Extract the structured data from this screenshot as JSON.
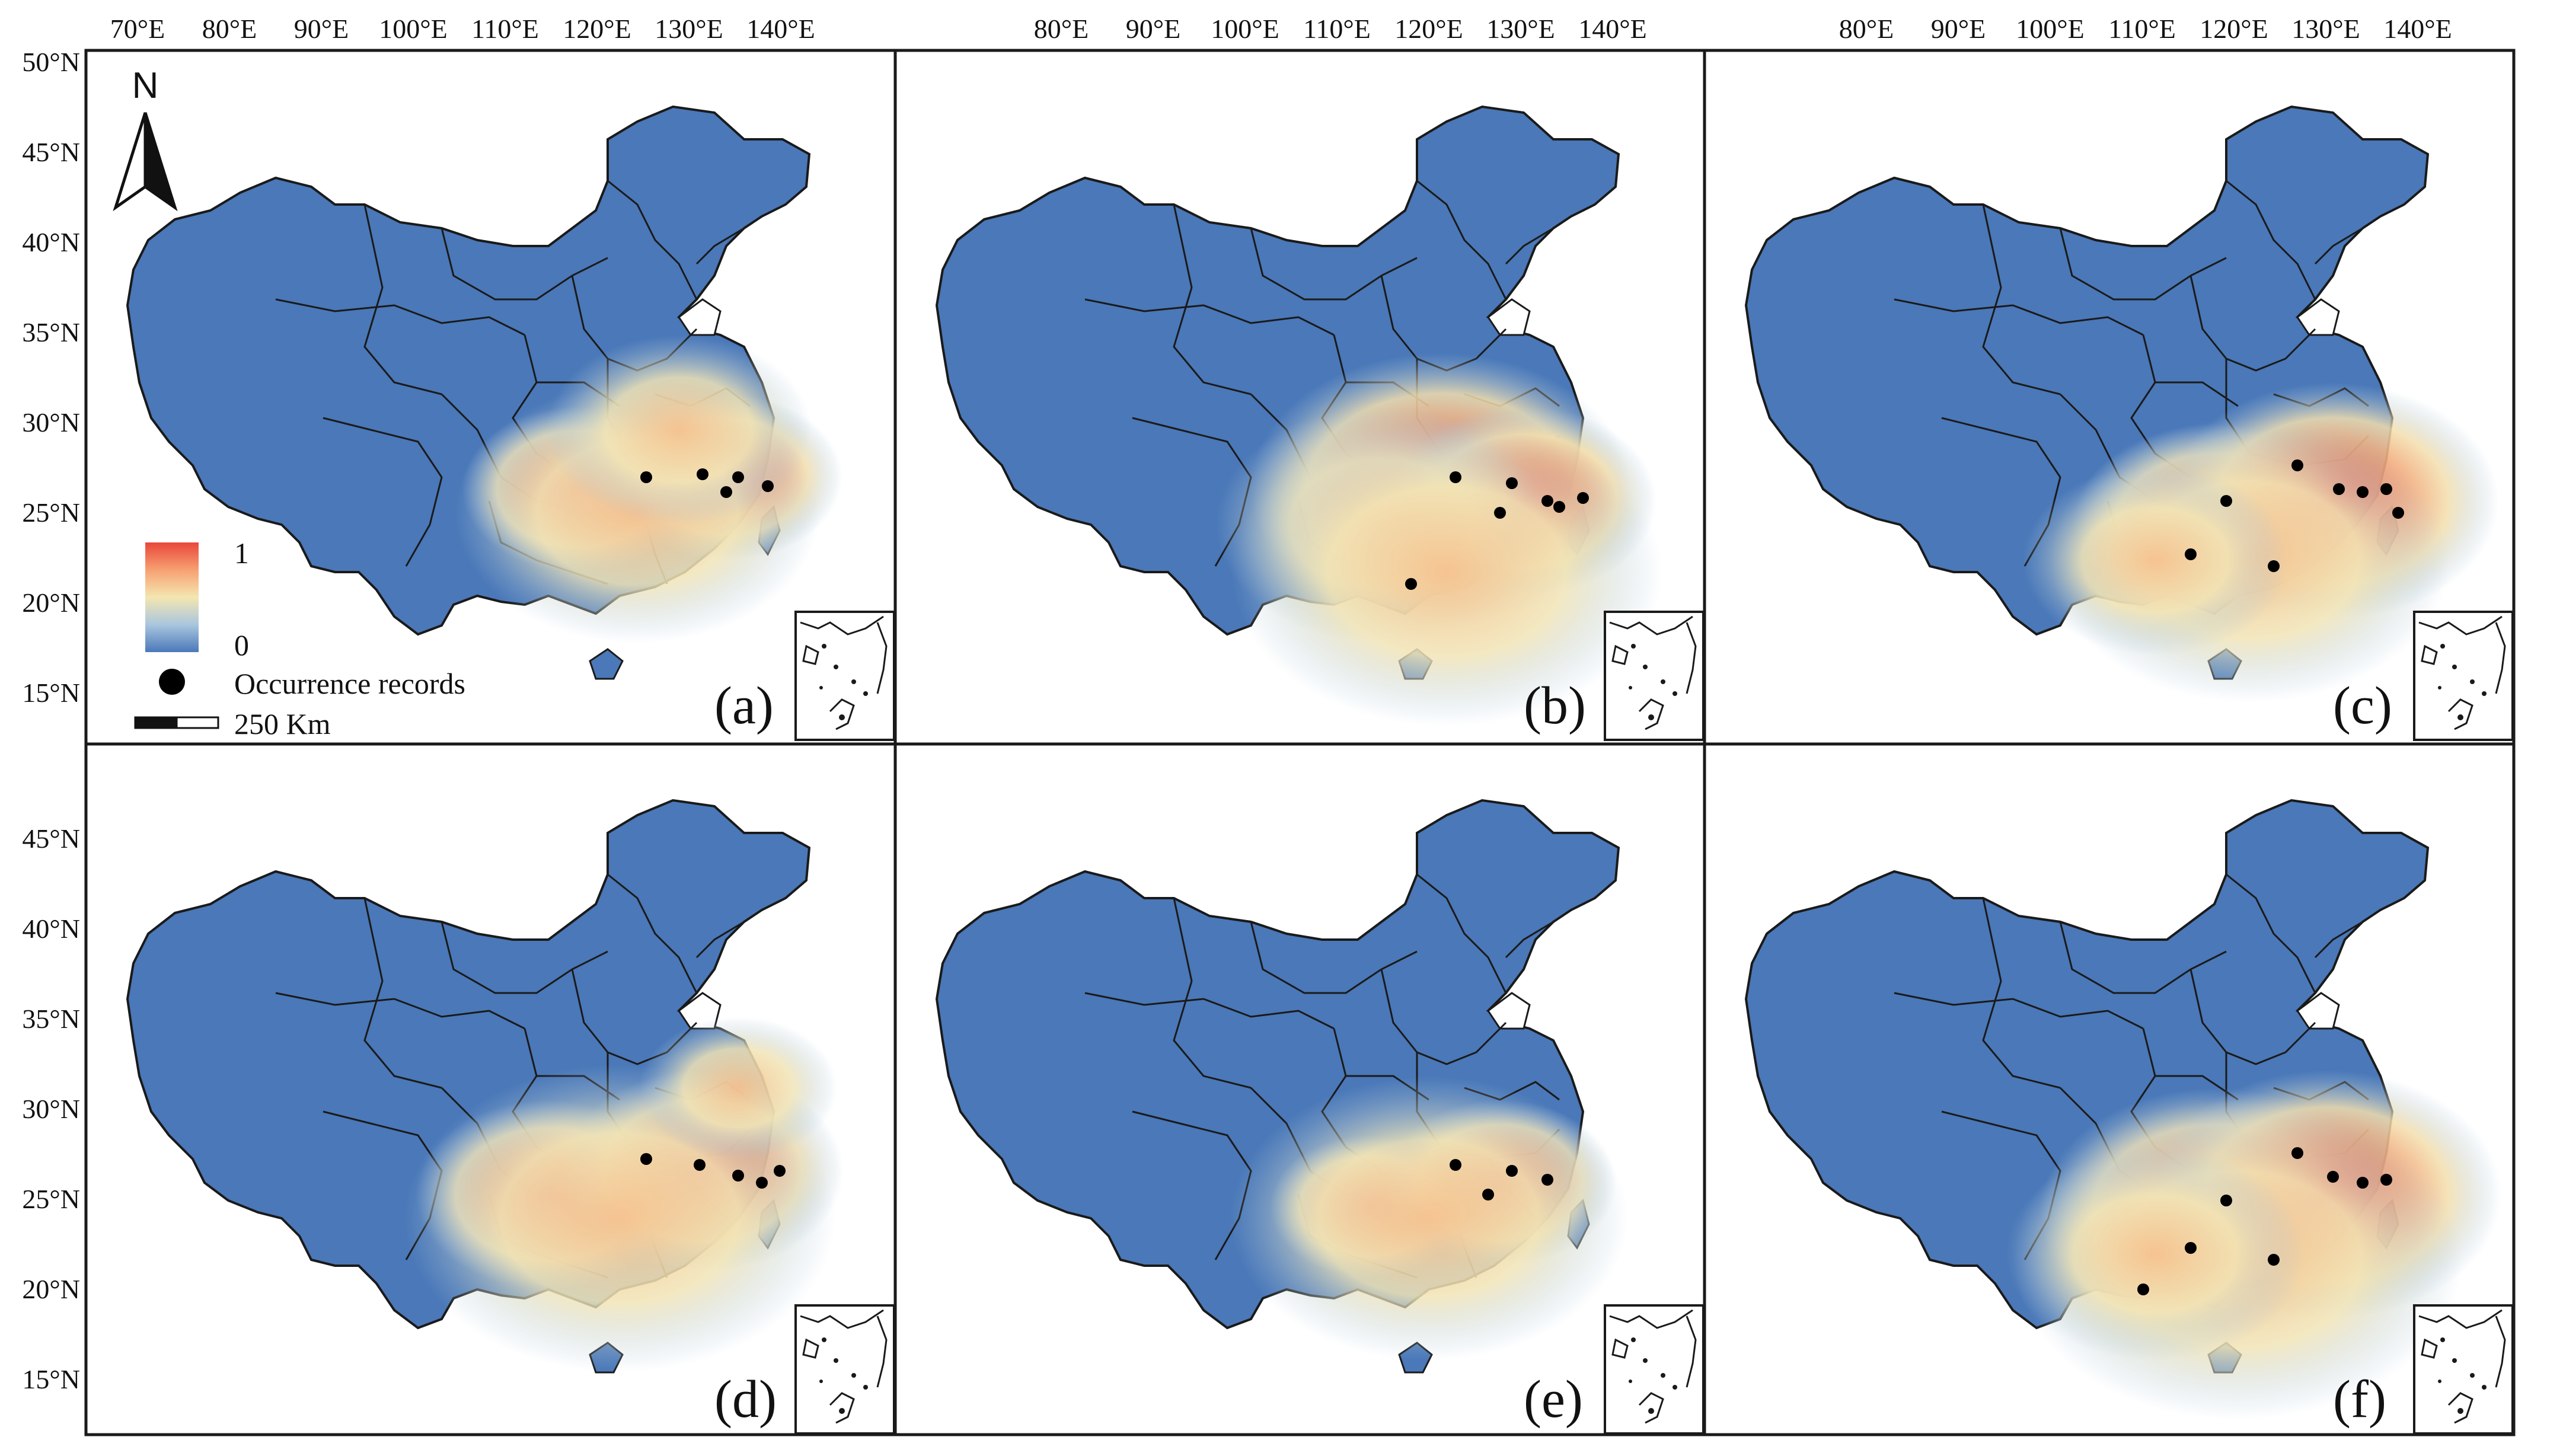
{
  "figure": {
    "panel_labels": [
      "(a)",
      "(b)",
      "(c)",
      "(d)",
      "(e)",
      "(f)"
    ]
  },
  "axes": {
    "top_labels": [
      [
        "70°E",
        "80°E",
        "90°E",
        "100°E",
        "110°E",
        "120°E",
        "130°E",
        "140°E"
      ],
      [
        "80°E",
        "90°E",
        "100°E",
        "110°E",
        "120°E",
        "130°E",
        "140°E"
      ],
      [
        "80°E",
        "90°E",
        "100°E",
        "110°E",
        "120°E",
        "130°E",
        "140°E"
      ]
    ],
    "left_labels_top_row": [
      "50°N",
      "45°N",
      "40°N",
      "35°N",
      "30°N",
      "25°N",
      "20°N",
      "15°N"
    ],
    "left_labels_bottom_row": [
      "45°N",
      "40°N",
      "35°N",
      "30°N",
      "25°N",
      "20°N",
      "15°N"
    ]
  },
  "legend": {
    "high_label": "1",
    "low_label": "0",
    "records_label": "Occurrence records",
    "scale_label": "250 Km",
    "north_label": "N",
    "gradient_colors": [
      "#d73027",
      "#f46d43",
      "#fdae61",
      "#fee08b",
      "#ffffbf",
      "#abd9e9",
      "#74add1",
      "#4575b4"
    ]
  },
  "colors": {
    "land_base": "#4a78b8",
    "boundary": "#1a1a1a",
    "hot": "#e8473a",
    "warm": "#f7a072",
    "mild": "#f4e6b0",
    "cool": "#a9c6df",
    "point": "#000000"
  }
}
